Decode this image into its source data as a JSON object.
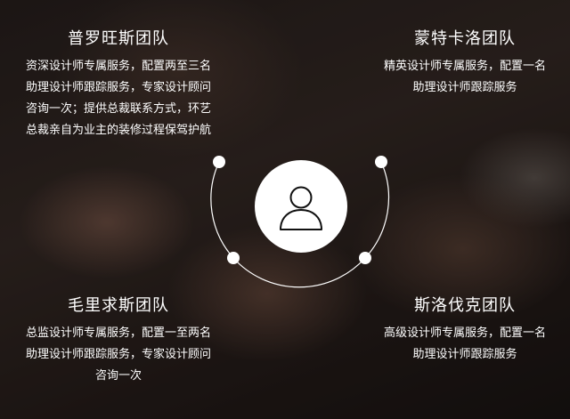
{
  "teams": {
    "top_left": {
      "title": "普罗旺斯团队",
      "lines": [
        "资深设计师专属服务，配置两至三名",
        "助理设计师跟踪服务，专家设计顾问",
        "咨询一次；提供总裁联系方式，环艺",
        "总裁亲自为业主的装修过程保驾护航"
      ]
    },
    "top_right": {
      "title": "蒙特卡洛团队",
      "lines": [
        "精英设计师专属服务，配置一名",
        "助理设计师跟踪服务"
      ]
    },
    "bottom_left": {
      "title": "毛里求斯团队",
      "lines": [
        "总监设计师专属服务，配置一至两名",
        "助理设计师跟踪服务，专家设计顾问",
        "咨询一次"
      ]
    },
    "bottom_right": {
      "title": "斯洛伐克团队",
      "lines": [
        "高级设计师专属服务，配置一名",
        "助理设计师跟踪服务"
      ]
    }
  },
  "center": {
    "icon": "user-icon",
    "ring_color": "#ffffff"
  }
}
